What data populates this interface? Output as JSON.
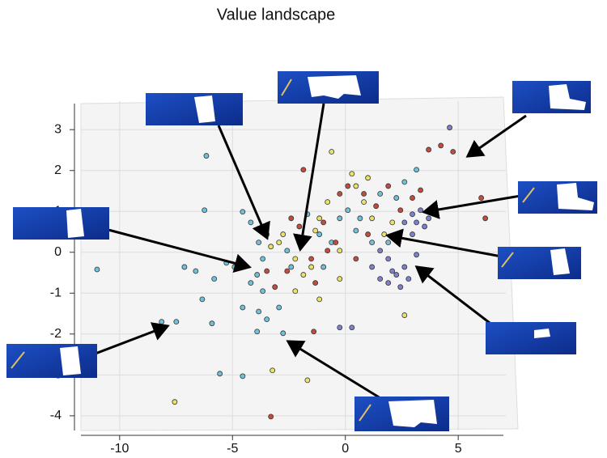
{
  "chart_data": {
    "type": "scatter",
    "title": "Value  landscape",
    "xlim": [
      -11.5,
      6.5
    ],
    "ylim": [
      -4.3,
      3.4
    ],
    "xticks": [
      -10,
      -5,
      0,
      5
    ],
    "yticks": [
      3,
      2,
      1,
      0,
      -1,
      -2,
      -3,
      -4
    ],
    "grid": true,
    "series": [
      {
        "color": "#62bcd8",
        "x": [
          -11.0,
          -6.16,
          -6.24,
          -8.14,
          -7.49,
          -5.91,
          -5.56,
          -7.13,
          -6.63,
          -6.34,
          -5.81,
          -5.27,
          -4.91,
          -4.55,
          -4.19,
          -3.84,
          -3.66,
          -3.91,
          -4.19,
          -3.66,
          -4.55,
          -3.84,
          -3.48,
          -3.91,
          -2.94,
          -2.58,
          -2.4,
          -2.04,
          -1.68,
          -1.15,
          -0.97,
          -0.61,
          -0.25,
          0.11,
          0.47,
          0.65,
          1.18,
          1.54,
          1.9,
          2.26,
          2.62,
          3.15,
          -4.55,
          -2.76
        ],
        "values": [
          -0.42,
          2.36,
          1.03,
          -1.7,
          -1.7,
          -1.74,
          -2.97,
          -0.36,
          -0.46,
          -1.15,
          -0.65,
          -0.26,
          -0.36,
          0.99,
          0.73,
          0.24,
          -0.16,
          -0.55,
          -0.75,
          -0.95,
          -1.35,
          -1.45,
          -1.64,
          -1.94,
          -1.35,
          0.04,
          -0.36,
          0.24,
          0.93,
          0.44,
          -0.36,
          0.24,
          0.83,
          1.03,
          0.53,
          0.83,
          0.24,
          1.43,
          0.24,
          1.33,
          1.72,
          2.02,
          -3.03,
          -1.98
        ]
      },
      {
        "color": "#e9e15c",
        "x": [
          -7.56,
          -3.23,
          -1.68,
          -3.48,
          -3.3,
          -2.94,
          -2.76,
          -2.22,
          -1.86,
          -1.51,
          -1.33,
          -1.15,
          -0.79,
          -0.61,
          -0.25,
          0.29,
          0.47,
          0.82,
          1.0,
          1.18,
          1.72,
          2.08,
          2.62,
          -2.22,
          -1.15,
          -0.25
        ],
        "values": [
          -3.66,
          -2.89,
          -3.13,
          0.44,
          0.14,
          0.24,
          0.44,
          -0.16,
          -0.55,
          -0.36,
          0.53,
          0.83,
          1.23,
          2.46,
          0.04,
          1.92,
          1.62,
          1.23,
          1.82,
          0.83,
          0.44,
          0.73,
          -1.54,
          -0.95,
          -1.15,
          -0.65
        ]
      },
      {
        "color": "#c0392b",
        "x": [
          -3.3,
          -3.48,
          -3.12,
          -2.58,
          -2.4,
          -2.04,
          -1.86,
          -1.51,
          -1.33,
          -0.97,
          -0.79,
          -0.43,
          -0.25,
          0.11,
          0.47,
          0.82,
          1.0,
          1.36,
          1.9,
          2.44,
          2.97,
          3.33,
          3.69,
          4.23,
          4.77,
          6.02,
          6.2,
          -1.4
        ],
        "values": [
          -4.02,
          -0.46,
          -0.85,
          -0.46,
          0.83,
          0.63,
          2.02,
          -0.16,
          -0.75,
          0.73,
          0.04,
          0.24,
          1.43,
          1.62,
          -0.16,
          1.43,
          0.44,
          1.13,
          1.62,
          1.03,
          1.33,
          1.52,
          2.51,
          2.61,
          2.46,
          1.33,
          0.83,
          -1.94
        ]
      },
      {
        "color": "#7074cc",
        "x": [
          4.62,
          -0.25,
          0.29,
          1.54,
          1.9,
          2.08,
          2.26,
          2.62,
          2.8,
          2.97,
          3.15,
          3.33,
          3.51,
          2.97,
          2.62,
          2.44,
          3.15,
          3.69,
          1.9,
          1.54,
          1.18
        ],
        "values": [
          3.05,
          -1.84,
          -1.84,
          0.04,
          -0.16,
          -0.46,
          -0.55,
          -0.36,
          -0.65,
          0.93,
          0.73,
          1.03,
          0.63,
          0.44,
          0.73,
          -0.85,
          -0.06,
          0.83,
          -0.75,
          -0.65,
          -0.36
        ]
      }
    ]
  }
}
